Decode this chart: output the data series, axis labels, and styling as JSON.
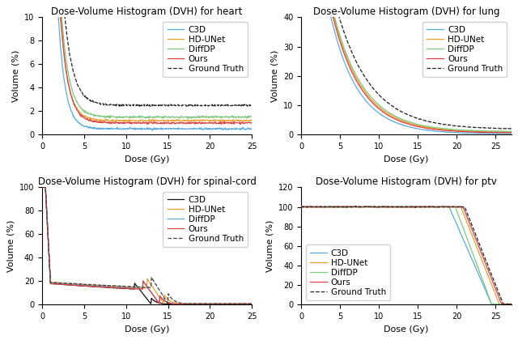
{
  "title_heart": "Dose-Volume Histogram (DVH) for heart",
  "title_lung": "Dose-Volume Histogram (DVH) for lung",
  "title_spinal": "Dose-Volume Histogram (DVH) for spinal-cord",
  "title_ptv": "Dose-Volume Histogram (DVH) for ptv",
  "xlabel": "Dose (Gy)",
  "ylabel": "Volume (%)",
  "colors_heart": {
    "C3D": "#5aace0",
    "HD-UNet": "#f0a030",
    "DiffDP": "#7cc87c",
    "Ours": "#e04040",
    "Ground Truth": "#222222"
  },
  "colors_spinal": {
    "C3D": "#111111",
    "HD-UNet": "#f0a030",
    "DiffDP": "#5aace0",
    "Ours": "#e04040",
    "Ground Truth": "#444444"
  },
  "colors_ptv": {
    "C3D": "#5aace0",
    "HD-UNet": "#f0a030",
    "DiffDP": "#5cc05c",
    "Ours": "#e04040",
    "Ground Truth": "#444444"
  },
  "legend_labels": [
    "C3D",
    "HD-UNet",
    "DiffDP",
    "Ours",
    "Ground Truth"
  ],
  "heart_xlim": [
    0,
    25
  ],
  "lung_xlim": [
    0,
    27
  ],
  "spinal_xlim": [
    0,
    25
  ],
  "ptv_xlim": [
    0,
    27
  ],
  "heart_ylim": [
    0,
    10
  ],
  "lung_ylim": [
    0,
    40
  ],
  "spinal_ylim": [
    0,
    100
  ],
  "ptv_ylim": [
    0,
    120
  ],
  "background_color": "#ffffff",
  "title_fontsize": 8.5,
  "axis_fontsize": 8,
  "legend_fontsize": 7.5
}
